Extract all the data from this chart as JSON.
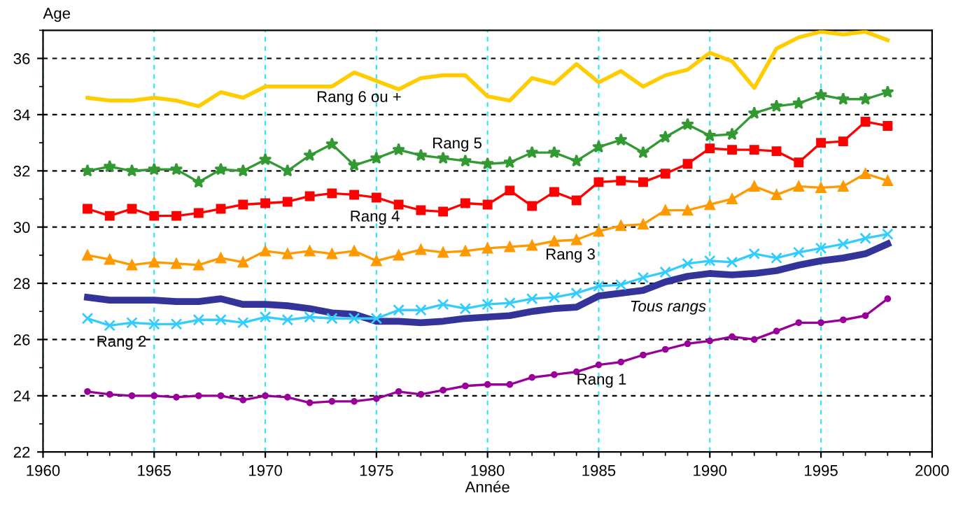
{
  "chart_data": {
    "type": "line",
    "xlabel": "Année",
    "ylabel": "Age",
    "xlim": [
      1960,
      2000
    ],
    "xticks": [
      1960,
      1965,
      1970,
      1975,
      1980,
      1985,
      1990,
      1995,
      2000
    ],
    "ylim": [
      22,
      37
    ],
    "yticks": [
      22,
      24,
      26,
      28,
      30,
      32,
      34,
      36
    ],
    "grid": true,
    "legend": false,
    "x": [
      1962,
      1963,
      1964,
      1965,
      1966,
      1967,
      1968,
      1969,
      1970,
      1971,
      1972,
      1973,
      1974,
      1975,
      1976,
      1977,
      1978,
      1979,
      1980,
      1981,
      1982,
      1983,
      1984,
      1985,
      1986,
      1987,
      1988,
      1989,
      1990,
      1991,
      1992,
      1993,
      1994,
      1995,
      1996,
      1997,
      1998
    ],
    "series": [
      {
        "name": "Rang 6 ou +",
        "color": "#ffcc00",
        "marker": "none",
        "values": [
          34.6,
          34.5,
          34.5,
          34.6,
          34.5,
          34.3,
          34.8,
          34.6,
          35.0,
          35.0,
          35.0,
          35.0,
          35.5,
          35.2,
          34.9,
          35.3,
          35.4,
          35.4,
          34.65,
          34.5,
          35.3,
          35.1,
          35.8,
          35.15,
          35.55,
          35.0,
          35.4,
          35.6,
          36.2,
          35.9,
          34.95,
          36.35,
          36.75,
          36.95,
          36.85,
          36.95,
          36.65
        ]
      },
      {
        "name": "Rang 5",
        "color": "#339933",
        "marker": "star",
        "values": [
          32.0,
          32.15,
          32.0,
          32.05,
          32.05,
          31.6,
          32.05,
          32.0,
          32.4,
          32.0,
          32.55,
          32.95,
          32.2,
          32.45,
          32.75,
          32.55,
          32.45,
          32.35,
          32.25,
          32.3,
          32.65,
          32.65,
          32.35,
          32.85,
          33.1,
          32.65,
          33.2,
          33.65,
          33.25,
          33.3,
          34.05,
          34.3,
          34.4,
          34.7,
          34.55,
          34.55,
          34.8
        ]
      },
      {
        "name": "Rang 4",
        "color": "#ff0000",
        "marker": "square",
        "values": [
          30.65,
          30.4,
          30.65,
          30.4,
          30.4,
          30.5,
          30.65,
          30.8,
          30.85,
          30.9,
          31.1,
          31.2,
          31.15,
          31.05,
          30.8,
          30.6,
          30.55,
          30.85,
          30.8,
          31.3,
          30.75,
          31.25,
          30.95,
          31.6,
          31.65,
          31.6,
          31.9,
          32.25,
          32.8,
          32.75,
          32.75,
          32.7,
          32.3,
          33.0,
          33.05,
          33.75,
          33.6
        ]
      },
      {
        "name": "Rang 3",
        "color": "#ff9900",
        "marker": "triangle",
        "values": [
          29.0,
          28.85,
          28.65,
          28.75,
          28.7,
          28.65,
          28.9,
          28.75,
          29.15,
          29.05,
          29.15,
          29.05,
          29.15,
          28.8,
          29.0,
          29.2,
          29.1,
          29.15,
          29.25,
          29.3,
          29.35,
          29.5,
          29.55,
          29.85,
          30.05,
          30.1,
          30.6,
          30.6,
          30.8,
          31.0,
          31.45,
          31.15,
          31.45,
          31.4,
          31.45,
          31.9,
          31.65
        ]
      },
      {
        "name": "Tous rangs",
        "color": "#333399",
        "marker": "none",
        "values": [
          27.5,
          27.4,
          27.4,
          27.4,
          27.35,
          27.35,
          27.45,
          27.25,
          27.25,
          27.2,
          27.1,
          26.95,
          26.9,
          26.65,
          26.65,
          26.6,
          26.65,
          26.75,
          26.8,
          26.85,
          27.0,
          27.1,
          27.15,
          27.55,
          27.65,
          27.75,
          28.05,
          28.25,
          28.35,
          28.3,
          28.35,
          28.45,
          28.65,
          28.8,
          28.9,
          29.05,
          29.4
        ]
      },
      {
        "name": "Rang 2",
        "color": "#33ccff",
        "marker": "cross",
        "values": [
          26.75,
          26.5,
          26.6,
          26.55,
          26.55,
          26.7,
          26.7,
          26.6,
          26.8,
          26.7,
          26.8,
          26.75,
          26.75,
          26.75,
          27.05,
          27.05,
          27.25,
          27.1,
          27.25,
          27.3,
          27.45,
          27.5,
          27.65,
          27.9,
          27.95,
          28.2,
          28.4,
          28.7,
          28.8,
          28.75,
          29.05,
          28.9,
          29.1,
          29.25,
          29.4,
          29.6,
          29.75
        ]
      },
      {
        "name": "Rang 1",
        "color": "#990099",
        "marker": "circle",
        "values": [
          24.15,
          24.05,
          24.0,
          24.0,
          23.95,
          24.0,
          24.0,
          23.85,
          24.0,
          23.95,
          23.75,
          23.8,
          23.8,
          23.9,
          24.15,
          24.05,
          24.2,
          24.35,
          24.4,
          24.4,
          24.65,
          24.75,
          24.85,
          25.1,
          25.2,
          25.45,
          25.65,
          25.85,
          25.95,
          26.1,
          26.0,
          26.3,
          26.6,
          26.6,
          26.7,
          26.85,
          27.45
        ]
      }
    ]
  }
}
